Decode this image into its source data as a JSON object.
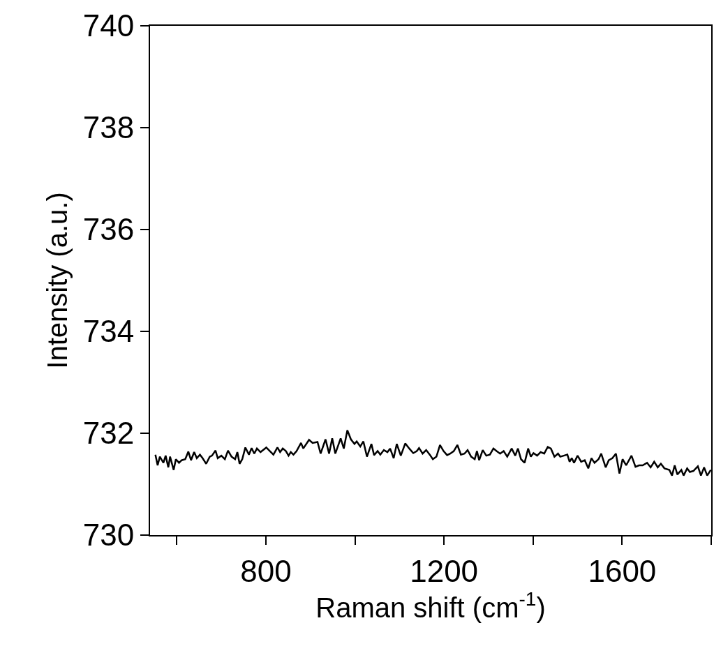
{
  "chart_data": {
    "type": "line",
    "xlabel": "Raman shift (cm$^{-1}$)",
    "ylabel": "Intensity (a.u.)",
    "xlim": [
      540,
      1800
    ],
    "ylim": [
      730,
      740
    ],
    "xticks": [
      {
        "value": 600,
        "label": null
      },
      800,
      {
        "value": 1000,
        "label": null
      },
      1200,
      {
        "value": 1400,
        "label": null
      },
      1600,
      {
        "value": 1800,
        "label": null
      }
    ],
    "yticks": [
      730,
      732,
      734,
      736,
      738,
      740
    ],
    "series": [
      {
        "color": "#000000",
        "x": [
          552,
          557,
          562,
          570,
          575,
          581,
          585,
          593,
          598,
          605,
          611,
          619,
          626,
          632,
          639,
          645,
          652,
          658,
          666,
          674,
          679,
          687,
          692,
          700,
          708,
          715,
          723,
          731,
          736,
          741,
          747,
          754,
          762,
          768,
          774,
          780,
          788,
          801,
          809,
          817,
          826,
          832,
          838,
          845,
          851,
          856,
          862,
          869,
          879,
          884,
          897,
          905,
          916,
          923,
          934,
          942,
          949,
          956,
          968,
          975,
          983,
          991,
          999,
          1004,
          1012,
          1019,
          1027,
          1037,
          1043,
          1051,
          1057,
          1065,
          1073,
          1079,
          1087,
          1094,
          1103,
          1113,
          1122,
          1131,
          1139,
          1144,
          1152,
          1160,
          1168,
          1175,
          1183,
          1191,
          1199,
          1207,
          1214,
          1222,
          1230,
          1238,
          1246,
          1253,
          1261,
          1269,
          1274,
          1279,
          1287,
          1295,
          1303,
          1311,
          1318,
          1326,
          1334,
          1342,
          1352,
          1360,
          1366,
          1373,
          1381,
          1389,
          1395,
          1401,
          1409,
          1417,
          1425,
          1433,
          1440,
          1448,
          1456,
          1461,
          1469,
          1477,
          1482,
          1487,
          1492,
          1500,
          1508,
          1516,
          1524,
          1531,
          1538,
          1547,
          1553,
          1563,
          1570,
          1578,
          1586,
          1594,
          1601,
          1609,
          1621,
          1630,
          1638,
          1646,
          1656,
          1664,
          1672,
          1680,
          1687,
          1695,
          1706,
          1712,
          1718,
          1724,
          1733,
          1738,
          1746,
          1752,
          1760,
          1770,
          1777,
          1784,
          1791,
          1799
        ],
        "values": [
          731.58,
          731.37,
          731.54,
          731.42,
          731.56,
          731.33,
          731.54,
          731.28,
          731.49,
          731.42,
          731.47,
          731.49,
          731.64,
          731.47,
          731.63,
          731.51,
          731.58,
          731.51,
          731.4,
          731.54,
          731.56,
          731.66,
          731.51,
          731.56,
          731.49,
          731.66,
          731.54,
          731.49,
          731.63,
          731.4,
          731.49,
          731.72,
          731.58,
          731.71,
          731.6,
          731.7,
          731.63,
          731.72,
          731.65,
          731.58,
          731.72,
          731.63,
          731.7,
          731.65,
          731.56,
          731.63,
          731.58,
          731.65,
          731.81,
          731.7,
          731.87,
          731.81,
          731.83,
          731.6,
          731.88,
          731.6,
          731.9,
          731.6,
          731.9,
          731.7,
          732.06,
          731.88,
          731.79,
          731.84,
          731.74,
          731.84,
          731.54,
          731.79,
          731.57,
          731.65,
          731.58,
          731.67,
          731.63,
          731.7,
          731.51,
          731.79,
          731.56,
          731.8,
          731.7,
          731.61,
          731.65,
          731.71,
          731.6,
          731.67,
          731.58,
          731.49,
          731.54,
          731.77,
          731.65,
          731.57,
          731.6,
          731.65,
          731.77,
          731.58,
          731.6,
          731.67,
          731.54,
          731.49,
          731.65,
          731.47,
          731.67,
          731.56,
          731.58,
          731.7,
          731.65,
          731.6,
          731.65,
          731.54,
          731.7,
          731.56,
          731.7,
          731.49,
          731.42,
          731.7,
          731.54,
          731.61,
          731.56,
          731.63,
          731.6,
          731.73,
          731.7,
          731.54,
          731.6,
          731.54,
          731.56,
          731.58,
          731.44,
          731.51,
          731.42,
          731.56,
          731.44,
          731.47,
          731.31,
          731.51,
          731.42,
          731.49,
          731.6,
          731.33,
          731.47,
          731.51,
          731.6,
          731.21,
          731.49,
          731.37,
          731.56,
          731.34,
          731.37,
          731.37,
          731.42,
          731.33,
          731.44,
          731.33,
          731.4,
          731.31,
          731.28,
          731.17,
          731.37,
          731.19,
          731.28,
          731.17,
          731.31,
          731.24,
          731.26,
          731.35,
          731.17,
          731.33,
          731.17,
          731.28
        ]
      }
    ]
  }
}
